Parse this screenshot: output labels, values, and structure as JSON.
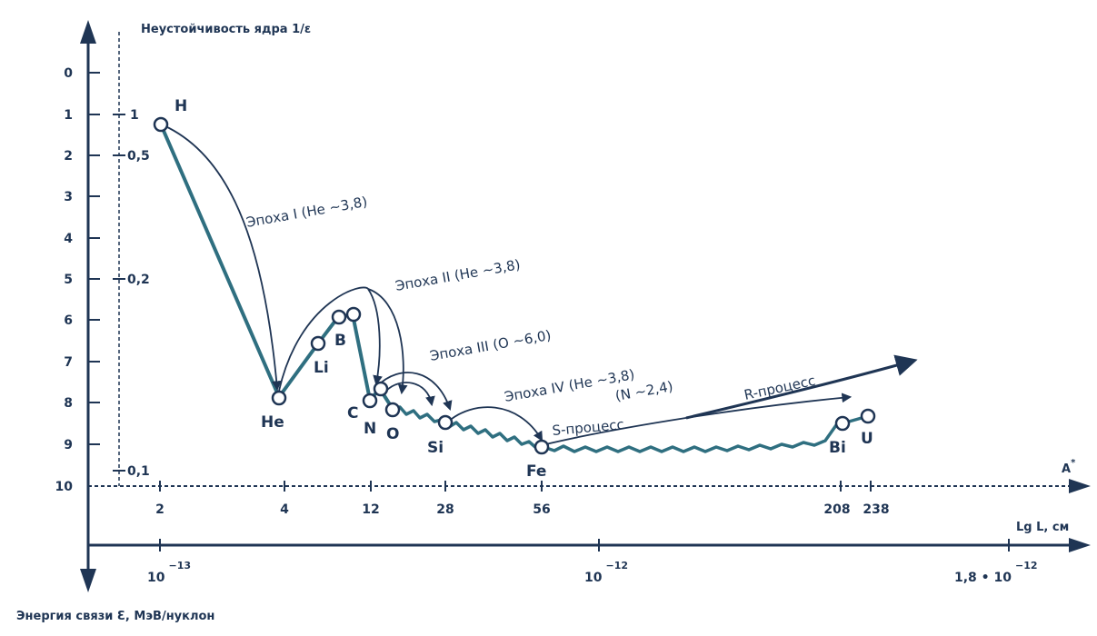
{
  "title_y": "Неустойчивость ядра 1/ε",
  "ylabel_bottom": "Энергия связи Ɛ, МэВ/нуклон",
  "xlabel_A": "A",
  "xlabel_A_sup": "*",
  "xlabel_L": "Lg L, см",
  "colors": {
    "axis": "#1f3554",
    "curve": "#2f6f80",
    "text": "#1f3554",
    "marker_fill": "#ffffff"
  },
  "left_ticks": [
    "0",
    "1",
    "2",
    "3",
    "4",
    "5",
    "6",
    "7",
    "8",
    "9",
    "10"
  ],
  "inner_ticks": [
    "1",
    "0,5",
    "0,2",
    "0,1"
  ],
  "mass_ticks": [
    "2",
    "4",
    "12",
    "28",
    "56",
    "208",
    "238"
  ],
  "length_ticks": [
    {
      "base": "10",
      "exp": "−13"
    },
    {
      "base": "10",
      "exp": "−12"
    },
    {
      "base": "1,8 • 10",
      "exp": "−12"
    }
  ],
  "elements": [
    "H",
    "He",
    "Li",
    "B",
    "C",
    "N",
    "O",
    "Si",
    "Fe",
    "Bi",
    "U"
  ],
  "epochs": [
    "Эпоха I (He ~3,8)",
    "Эпоха II (He ~3,8)",
    "Эпоха III (O ~6,0)",
    "Эпоха IV (He ~3,8)",
    "(N ~2,4)"
  ],
  "processes": [
    "S-процесс",
    "R-процесс"
  ]
}
